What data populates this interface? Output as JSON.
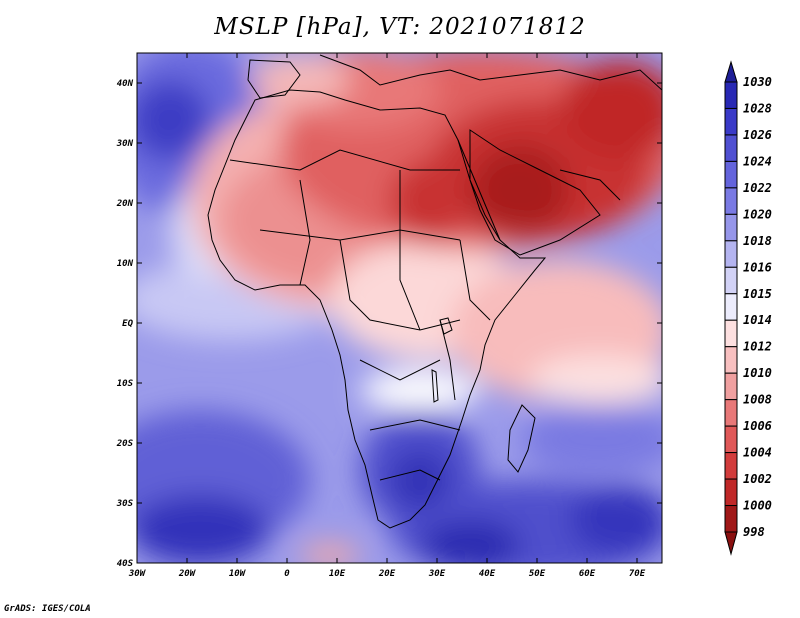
{
  "title": "MSLP [hPa], VT: 2021071812",
  "credit": "GrADS: IGES/COLA",
  "map": {
    "lat_labels": [
      "40N",
      "30N",
      "20N",
      "10N",
      "EQ",
      "10S",
      "20S",
      "30S",
      "40S"
    ],
    "lon_labels": [
      "30W",
      "20W",
      "10W",
      "0",
      "10E",
      "20E",
      "30E",
      "40E",
      "50E",
      "60E",
      "70E"
    ],
    "lon_range": [
      -30,
      75
    ],
    "lat_range": [
      -40,
      45
    ],
    "variable": "Mean sea level pressure",
    "units": "hPa",
    "valid_time": "2021071812"
  },
  "colorbar": {
    "levels": [
      "1030",
      "1028",
      "1026",
      "1024",
      "1022",
      "1020",
      "1018",
      "1016",
      "1015",
      "1014",
      "1012",
      "1010",
      "1008",
      "1006",
      "1004",
      "1002",
      "1000",
      "998"
    ],
    "colors": [
      "#1e1e96",
      "#2828b4",
      "#3a3ac8",
      "#5050d2",
      "#6464dc",
      "#7a7ae4",
      "#9696ea",
      "#b4b4f0",
      "#d2d2f6",
      "#ececfc",
      "#fde0e0",
      "#f8c0c0",
      "#f0a0a0",
      "#e87878",
      "#e05858",
      "#d23c3c",
      "#c02828",
      "#a01818",
      "#8a1010"
    ]
  }
}
